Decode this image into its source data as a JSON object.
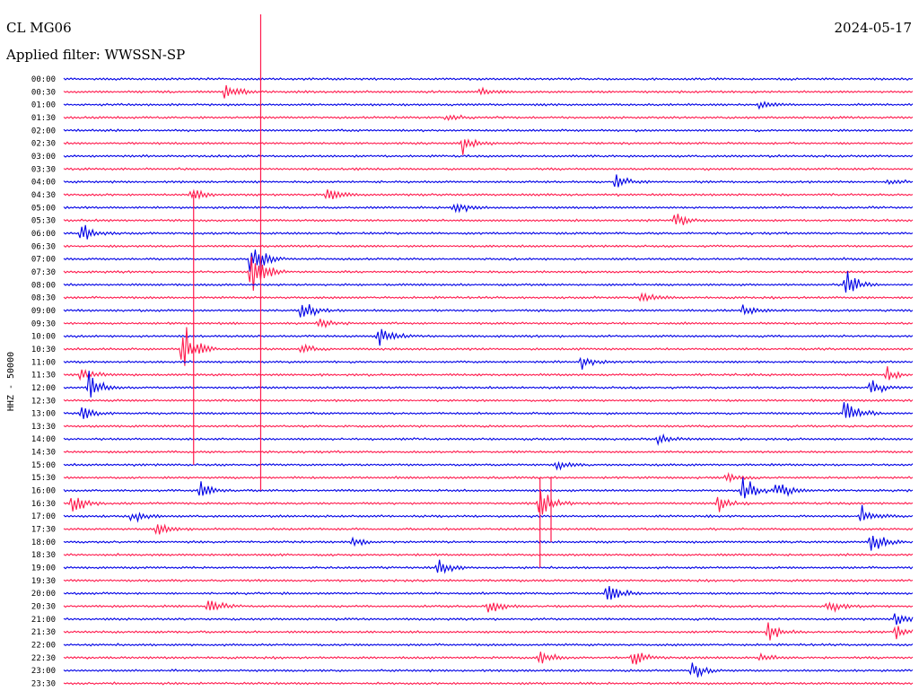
{
  "header": {
    "station": "CL MG06",
    "filter": "Applied filter: WWSSN-SP",
    "date": "2024-05-17"
  },
  "colors": {
    "even": "#0000e6",
    "odd": "#ff1a4d"
  },
  "chart_data": {
    "type": "line",
    "title": "",
    "ylabel": "HHZ - 50000",
    "xlabel": "",
    "grid": false,
    "rows": [
      {
        "label": "00:00",
        "events": []
      },
      {
        "label": "00:30",
        "events": [
          {
            "x": 0.19,
            "amp": 1.6
          },
          {
            "x": 0.49,
            "amp": 0.8
          }
        ]
      },
      {
        "label": "01:00",
        "events": [
          {
            "x": 0.82,
            "amp": 0.8
          }
        ]
      },
      {
        "label": "01:30",
        "events": [
          {
            "x": 0.45,
            "amp": 0.8
          }
        ]
      },
      {
        "label": "02:00",
        "events": []
      },
      {
        "label": "02:30",
        "events": [
          {
            "x": 0.47,
            "amp": 1.6
          }
        ]
      },
      {
        "label": "03:00",
        "events": []
      },
      {
        "label": "03:30",
        "events": []
      },
      {
        "label": "04:00",
        "events": [
          {
            "x": 0.65,
            "amp": 1.4
          },
          {
            "x": 0.97,
            "amp": 0.7
          }
        ]
      },
      {
        "label": "04:30",
        "events": [
          {
            "x": 0.15,
            "amp": 1.0
          },
          {
            "x": 0.31,
            "amp": 1.4
          }
        ]
      },
      {
        "label": "05:00",
        "events": [
          {
            "x": 0.46,
            "amp": 1.2
          }
        ]
      },
      {
        "label": "05:30",
        "events": [
          {
            "x": 0.72,
            "amp": 1.4
          }
        ]
      },
      {
        "label": "06:00",
        "events": [
          {
            "x": 0.02,
            "amp": 1.6
          }
        ]
      },
      {
        "label": "06:30",
        "events": []
      },
      {
        "label": "07:00",
        "events": [
          {
            "x": 0.22,
            "amp": 3.2
          }
        ]
      },
      {
        "label": "07:30",
        "events": [
          {
            "x": 0.22,
            "amp": 4.5
          }
        ]
      },
      {
        "label": "08:00",
        "events": [
          {
            "x": 0.92,
            "amp": 2.5
          }
        ]
      },
      {
        "label": "08:30",
        "events": [
          {
            "x": 0.68,
            "amp": 1.0
          }
        ]
      },
      {
        "label": "09:00",
        "events": [
          {
            "x": 0.28,
            "amp": 2.0
          },
          {
            "x": 0.8,
            "amp": 1.2
          }
        ]
      },
      {
        "label": "09:30",
        "events": [
          {
            "x": 0.3,
            "amp": 0.8
          }
        ]
      },
      {
        "label": "10:00",
        "events": [
          {
            "x": 0.37,
            "amp": 1.8
          }
        ]
      },
      {
        "label": "10:30",
        "events": [
          {
            "x": 0.14,
            "amp": 4.2
          },
          {
            "x": 0.28,
            "amp": 1.0
          }
        ]
      },
      {
        "label": "11:00",
        "events": [
          {
            "x": 0.61,
            "amp": 1.2
          }
        ]
      },
      {
        "label": "11:30",
        "events": [
          {
            "x": 0.02,
            "amp": 1.2
          },
          {
            "x": 0.97,
            "amp": 1.0
          }
        ]
      },
      {
        "label": "12:00",
        "events": [
          {
            "x": 0.03,
            "amp": 2.4
          },
          {
            "x": 0.95,
            "amp": 1.4
          }
        ]
      },
      {
        "label": "12:30",
        "events": []
      },
      {
        "label": "13:00",
        "events": [
          {
            "x": 0.02,
            "amp": 1.2
          },
          {
            "x": 0.92,
            "amp": 2.6
          }
        ]
      },
      {
        "label": "13:30",
        "events": []
      },
      {
        "label": "14:00",
        "events": [
          {
            "x": 0.7,
            "amp": 1.0
          }
        ]
      },
      {
        "label": "14:30",
        "events": []
      },
      {
        "label": "15:00",
        "events": [
          {
            "x": 0.58,
            "amp": 0.8
          }
        ]
      },
      {
        "label": "15:30",
        "events": [
          {
            "x": 0.78,
            "amp": 0.8
          }
        ]
      },
      {
        "label": "16:00",
        "events": [
          {
            "x": 0.16,
            "amp": 1.6
          },
          {
            "x": 0.8,
            "amp": 2.6
          },
          {
            "x": 0.84,
            "amp": 1.8
          }
        ]
      },
      {
        "label": "16:30",
        "events": [
          {
            "x": 0.01,
            "amp": 2.0
          },
          {
            "x": 0.56,
            "amp": 3.0
          },
          {
            "x": 0.77,
            "amp": 1.4
          }
        ]
      },
      {
        "label": "17:00",
        "events": [
          {
            "x": 0.08,
            "amp": 1.2
          },
          {
            "x": 0.94,
            "amp": 1.8
          }
        ]
      },
      {
        "label": "17:30",
        "events": [
          {
            "x": 0.11,
            "amp": 1.4
          }
        ]
      },
      {
        "label": "18:00",
        "events": [
          {
            "x": 0.34,
            "amp": 1.0
          },
          {
            "x": 0.95,
            "amp": 2.0
          }
        ]
      },
      {
        "label": "18:30",
        "events": []
      },
      {
        "label": "19:00",
        "events": [
          {
            "x": 0.44,
            "amp": 1.4
          }
        ]
      },
      {
        "label": "19:30",
        "events": []
      },
      {
        "label": "20:00",
        "events": [
          {
            "x": 0.64,
            "amp": 2.4
          }
        ]
      },
      {
        "label": "20:30",
        "events": [
          {
            "x": 0.17,
            "amp": 1.6
          },
          {
            "x": 0.5,
            "amp": 1.4
          },
          {
            "x": 0.9,
            "amp": 1.4
          }
        ]
      },
      {
        "label": "21:00",
        "events": [
          {
            "x": 0.98,
            "amp": 1.4
          }
        ]
      },
      {
        "label": "21:30",
        "events": [
          {
            "x": 0.83,
            "amp": 1.4
          },
          {
            "x": 0.98,
            "amp": 1.2
          }
        ]
      },
      {
        "label": "22:00",
        "events": []
      },
      {
        "label": "22:30",
        "events": [
          {
            "x": 0.56,
            "amp": 1.4
          },
          {
            "x": 0.67,
            "amp": 1.4
          },
          {
            "x": 0.82,
            "amp": 0.8
          }
        ]
      },
      {
        "label": "23:00",
        "events": [
          {
            "x": 0.74,
            "amp": 1.4
          }
        ]
      },
      {
        "label": "23:30",
        "events": []
      }
    ],
    "long_spikes": [
      {
        "x": 0.232,
        "from_row": 0,
        "to_row": 32,
        "color": "odd"
      },
      {
        "x": 0.153,
        "from_row": 9,
        "to_row": 30,
        "color": "odd"
      },
      {
        "x": 0.561,
        "from_row": 31,
        "to_row": 38,
        "color": "odd"
      },
      {
        "x": 0.574,
        "from_row": 31,
        "to_row": 36,
        "color": "odd"
      }
    ]
  }
}
